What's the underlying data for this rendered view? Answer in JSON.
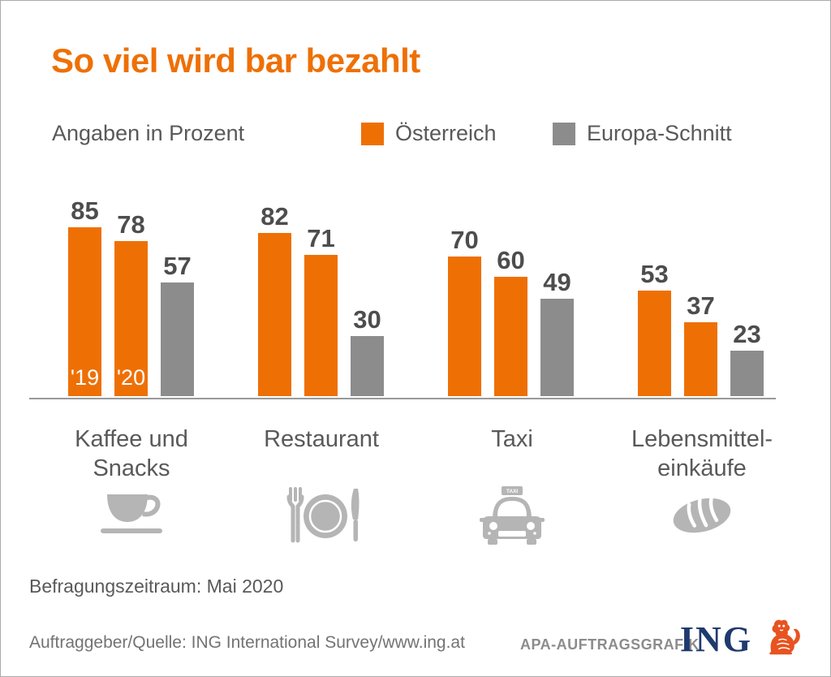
{
  "title": "So viel wird bar bezahlt",
  "subtitle": "Angaben in Prozent",
  "legend": [
    {
      "label": "Österreich",
      "color": "#ee7005"
    },
    {
      "label": "Europa-Schnitt",
      "color": "#8c8c8c"
    }
  ],
  "chart_data": {
    "type": "bar",
    "title": "So viel wird bar bezahlt",
    "unit": "Prozent",
    "categories": [
      "Kaffee und\nSnacks",
      "Restaurant",
      "Taxi",
      "Lebensmittel-\neinkäufe"
    ],
    "category_icons": [
      "coffee-cup-icon",
      "restaurant-plate-cutlery-icon",
      "taxi-car-icon",
      "bread-loaf-icon"
    ],
    "series": [
      {
        "name": "Österreich '19",
        "color": "#ee7005",
        "values": [
          85,
          82,
          70,
          53
        ]
      },
      {
        "name": "Österreich '20",
        "color": "#ee7005",
        "values": [
          78,
          71,
          60,
          37
        ]
      },
      {
        "name": "Europa-Schnitt",
        "color": "#8c8c8c",
        "values": [
          57,
          30,
          49,
          23
        ]
      }
    ],
    "bar_year_labels": [
      "'19",
      "'20"
    ],
    "value_labels_shown": true,
    "ylim": [
      0,
      100
    ],
    "grid": false,
    "legend_position": "top"
  },
  "taxi_sign_text": "TAXI",
  "footer": {
    "survey_period": "Befragungszeitraum: Mai 2020",
    "source": "Auftraggeber/Quelle: ING International Survey/www.ing.at",
    "credit": "APA-AUFTRAGSGRAFIK",
    "brand": "ING"
  },
  "colors": {
    "accent_orange": "#ee7005",
    "bar_gray": "#8c8c8c",
    "value_text": "#4d4d4d",
    "label_text": "#595959",
    "icon_gray": "#b5b5b5",
    "ing_navy": "#1f3a6e",
    "lion_orange": "#e85320"
  }
}
